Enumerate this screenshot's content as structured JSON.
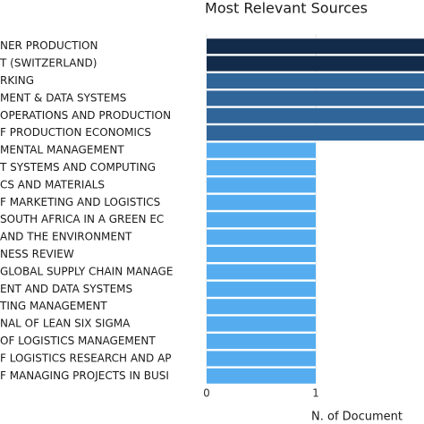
{
  "chart_data": {
    "type": "barh",
    "title": "Most Relevant Sources",
    "x_label": "N. of Document",
    "categories": [
      "NER PRODUCTION",
      "T (SWITZERLAND)",
      "RKING",
      "MENT & DATA SYSTEMS",
      "OPERATIONS AND PRODUCTION",
      "F PRODUCTION ECONOMICS",
      "MENTAL MANAGEMENT",
      "T SYSTEMS AND COMPUTING",
      "CS AND MATERIALS",
      "F MARKETING AND LOGISTICS",
      "SOUTH AFRICA IN A GREEN EC",
      "AND THE ENVIRONMENT",
      "NESS REVIEW",
      "GLOBAL SUPPLY CHAIN MANAGE",
      "ENT AND DATA SYSTEMS",
      "TING MANAGEMENT",
      "NAL OF LEAN SIX SIGMA",
      "OF LOGISTICS MANAGEMENT",
      "F LOGISTICS RESEARCH AND AP",
      "F MANAGING PROJECTS IN BUSI"
    ],
    "values": [
      2,
      2,
      2,
      2,
      2,
      2,
      1,
      1,
      1,
      1,
      1,
      1,
      1,
      1,
      1,
      1,
      1,
      1,
      1,
      1
    ],
    "colors": [
      "#132b4a",
      "#132b4a",
      "#2f6599",
      "#2f6599",
      "#2f6599",
      "#2f6599",
      "#55adf0",
      "#55adf0",
      "#55adf0",
      "#55adf0",
      "#55adf0",
      "#55adf0",
      "#55adf0",
      "#55adf0",
      "#55adf0",
      "#55adf0",
      "#55adf0",
      "#55adf0",
      "#55adf0",
      "#55adf0"
    ],
    "xlim": [
      0,
      2
    ],
    "xticks": [
      0,
      1
    ],
    "grid": true
  }
}
